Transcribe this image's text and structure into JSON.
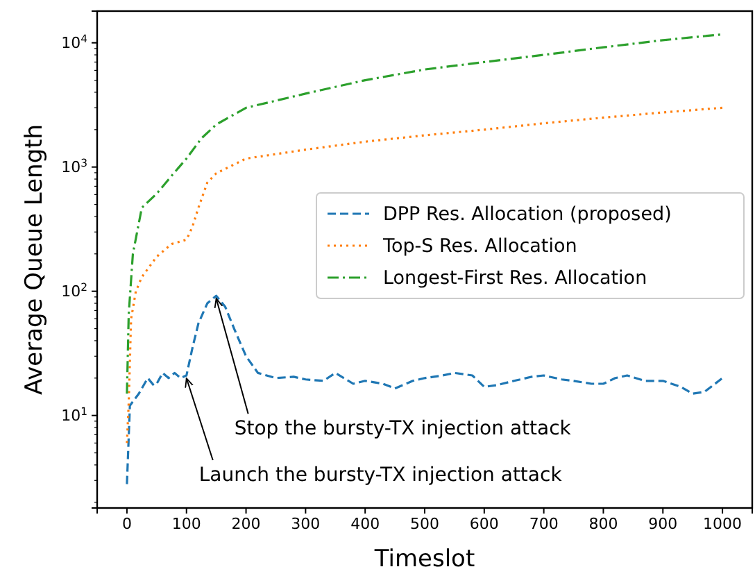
{
  "chart_data": {
    "type": "line",
    "xlabel": "Timeslot",
    "ylabel": "Average Queue Length",
    "log": "y",
    "xlim": [
      -50,
      1050
    ],
    "xticks": [
      0,
      100,
      200,
      300,
      400,
      500,
      600,
      700,
      800,
      900,
      1000
    ],
    "ylim": [
      1.8,
      18000
    ],
    "yticks": [
      {
        "value": 10,
        "label": "10$^{1}$"
      },
      {
        "value": 100,
        "label": "10$^{2}$"
      },
      {
        "value": 1000,
        "label": "10$^{3}$"
      },
      {
        "value": 10000,
        "label": "10$^{4}$"
      }
    ],
    "legend": "right",
    "grid": false,
    "series": [
      {
        "name": "DPP Res. Allocation (proposed)",
        "color": "#1f77b4",
        "line_style": "dashed",
        "x": [
          0,
          5,
          20,
          35,
          45,
          50,
          60,
          70,
          80,
          90,
          100,
          110,
          120,
          135,
          150,
          165,
          180,
          200,
          220,
          250,
          280,
          300,
          330,
          350,
          380,
          400,
          430,
          450,
          480,
          500,
          530,
          550,
          580,
          600,
          620,
          650,
          680,
          700,
          730,
          750,
          780,
          800,
          820,
          840,
          870,
          900,
          930,
          950,
          970,
          1000
        ],
        "values": [
          2.8,
          12,
          15,
          20,
          17.5,
          18,
          22,
          20,
          22,
          20,
          21,
          35,
          55,
          80,
          92,
          75,
          50,
          30,
          22,
          20,
          20.5,
          19.5,
          19,
          22,
          18,
          19,
          18,
          16.5,
          19,
          20,
          21,
          22,
          21,
          17,
          17.5,
          19,
          20.5,
          21,
          19.5,
          19,
          18,
          18,
          20,
          21,
          19,
          19,
          17,
          15,
          15.5,
          20
        ]
      },
      {
        "name": "Top-S Res. Allocation",
        "color": "#ff7f0e",
        "line_style": "dotted",
        "x": [
          0,
          3,
          7,
          15,
          25,
          50,
          75,
          100,
          110,
          120,
          135,
          150,
          200,
          300,
          400,
          500,
          600,
          700,
          800,
          900,
          1000
        ],
        "values": [
          6,
          12.6,
          60,
          100,
          130,
          190,
          240,
          260,
          330,
          470,
          750,
          890,
          1170,
          1380,
          1600,
          1800,
          2000,
          2250,
          2500,
          2750,
          3000
        ]
      },
      {
        "name": "Longest-First Res. Allocation",
        "color": "#2ca02c",
        "line_style": "dashdot",
        "x": [
          0,
          3,
          10,
          25,
          50,
          75,
          100,
          125,
          150,
          200,
          300,
          400,
          500,
          600,
          700,
          800,
          900,
          1000
        ],
        "values": [
          15,
          65,
          200,
          470,
          610,
          850,
          1170,
          1700,
          2200,
          3000,
          3900,
          5000,
          6100,
          7000,
          8000,
          9200,
          10500,
          11700
        ]
      }
    ],
    "annotations": [
      {
        "text": "Stop the bursty-TX injection attack",
        "x": 150,
        "y": 92
      },
      {
        "text": "Launch the bursty-TX injection attack",
        "x": 100,
        "y": 21
      }
    ]
  }
}
